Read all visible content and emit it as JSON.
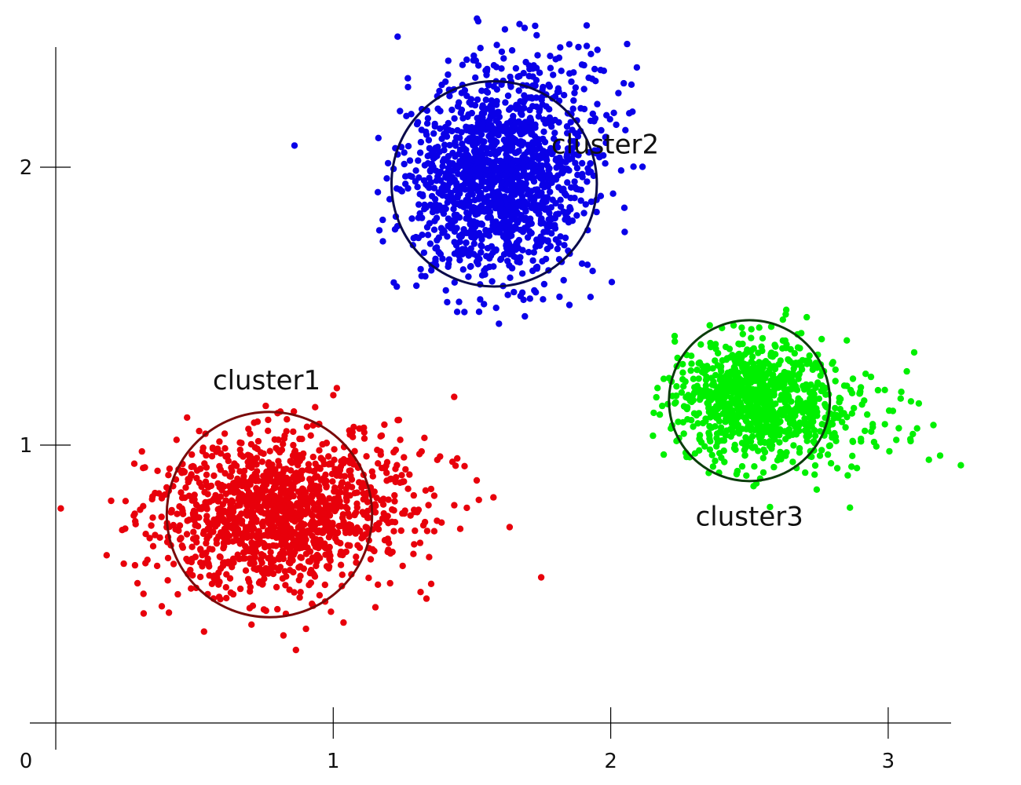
{
  "chart_data": {
    "type": "scatter",
    "title": "",
    "xlabel": "",
    "ylabel": "",
    "xlim": [
      0,
      3.2
    ],
    "ylim": [
      0,
      2.4
    ],
    "x_ticks": [
      0,
      1,
      2,
      3
    ],
    "y_ticks": [
      1,
      2
    ],
    "x_tick_labels": [
      "0",
      "1",
      "2",
      "3"
    ],
    "y_tick_labels": [
      "1",
      "2"
    ],
    "grid": false,
    "legend": "none",
    "series": [
      {
        "name": "cluster1",
        "color": "#e8000b",
        "ring_color": "#7a0a0a",
        "center": [
          0.77,
          0.75
        ],
        "radius": 0.37,
        "spread": [
          0.2,
          0.14
        ],
        "tail_direction": [
          1,
          0.25
        ],
        "count": 1400
      },
      {
        "name": "cluster2",
        "color": "#0a00e8",
        "ring_color": "#0a0a4a",
        "center": [
          1.58,
          1.94
        ],
        "radius": 0.37,
        "spread": [
          0.15,
          0.18
        ],
        "tail_direction": [
          0.6,
          0.8
        ],
        "count": 1500
      },
      {
        "name": "cluster3",
        "color": "#00f000",
        "ring_color": "#0b3d0b",
        "center": [
          2.5,
          1.16
        ],
        "radius": 0.29,
        "spread": [
          0.13,
          0.11
        ],
        "tail_direction": [
          1,
          -0.15
        ],
        "count": 1000
      }
    ],
    "annotations": [
      {
        "text": "cluster1",
        "x": 0.76,
        "y": 1.2
      },
      {
        "text": "cluster2",
        "x": 1.98,
        "y": 2.05
      },
      {
        "text": "cluster3",
        "x": 2.5,
        "y": 0.71
      }
    ]
  }
}
